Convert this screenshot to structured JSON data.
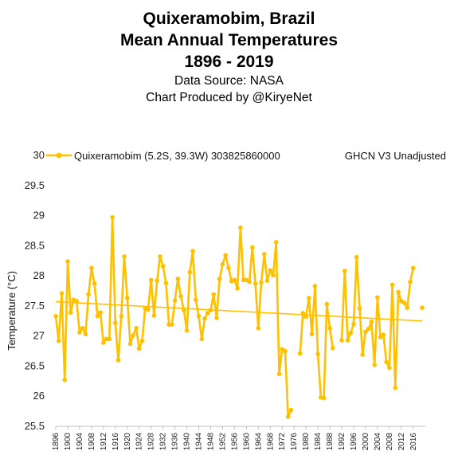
{
  "title_lines": [
    "Quixeramobim, Brazil",
    "Mean Annual Temperatures",
    "1896 - 2019"
  ],
  "subtitle_lines": [
    "Data Source: NASA",
    "Chart Produced by @KiryeNet"
  ],
  "colors": {
    "series": "#FFC000",
    "trend": "#FFC000",
    "text": "#000000"
  },
  "chart_data": {
    "type": "line",
    "title": "Quixeramobim, Brazil Mean Annual Temperatures 1896 - 2019",
    "ylabel": "Temperature (°C)",
    "xlabel": "",
    "ylim": [
      25.5,
      30
    ],
    "xlim": [
      1896,
      2019
    ],
    "yticks": [
      25.5,
      26,
      26.5,
      27,
      27.5,
      28,
      28.5,
      29,
      29.5,
      30
    ],
    "xticks": [
      1896,
      1900,
      1904,
      1908,
      1912,
      1916,
      1920,
      1924,
      1928,
      1932,
      1936,
      1940,
      1944,
      1948,
      1952,
      1956,
      1960,
      1964,
      1968,
      1972,
      1976,
      1980,
      1984,
      1988,
      1992,
      1996,
      2000,
      2004,
      2008,
      2012,
      2016
    ],
    "grid": false,
    "legend_position": "top",
    "legend_label": "Quixeramobim (5.2S, 39.3W) 303825860000",
    "legend_note": "GHCN V3 Unadjusted",
    "trendline": {
      "start": [
        1896,
        27.57
      ],
      "end": [
        2019,
        27.25
      ]
    },
    "series": [
      {
        "name": "Quixeramobim (5.2S, 39.3W) 303825860000",
        "points": [
          [
            1896,
            27.33
          ],
          [
            1897,
            26.92
          ],
          [
            1898,
            27.71
          ],
          [
            1899,
            26.27
          ],
          [
            1900,
            28.24
          ],
          [
            1901,
            27.39
          ],
          [
            1902,
            27.6
          ],
          [
            1903,
            27.58
          ],
          [
            1904,
            27.06
          ],
          [
            1905,
            27.13
          ],
          [
            1906,
            27.03
          ],
          [
            1907,
            27.69
          ],
          [
            1908,
            28.13
          ],
          [
            1909,
            27.87
          ],
          [
            1910,
            27.33
          ],
          [
            1911,
            27.39
          ],
          [
            1912,
            26.89
          ],
          [
            1913,
            26.95
          ],
          [
            1914,
            26.95
          ],
          [
            1915,
            28.97
          ],
          [
            1916,
            27.22
          ],
          [
            1917,
            26.6
          ],
          [
            1918,
            27.33
          ],
          [
            1919,
            28.32
          ],
          [
            1920,
            27.63
          ],
          [
            1921,
            26.87
          ],
          [
            1922,
            27.01
          ],
          [
            1923,
            27.13
          ],
          [
            1924,
            26.79
          ],
          [
            1925,
            26.92
          ],
          [
            1926,
            27.46
          ],
          [
            1927,
            27.44
          ],
          [
            1928,
            27.93
          ],
          [
            1929,
            27.34
          ],
          [
            1930,
            27.92
          ],
          [
            1931,
            28.32
          ],
          [
            1932,
            28.16
          ],
          [
            1933,
            27.88
          ],
          [
            1934,
            27.19
          ],
          [
            1935,
            27.19
          ],
          [
            1936,
            27.59
          ],
          [
            1937,
            27.95
          ],
          [
            1938,
            27.66
          ],
          [
            1939,
            27.43
          ],
          [
            1940,
            27.09
          ],
          [
            1941,
            28.06
          ],
          [
            1942,
            28.41
          ],
          [
            1943,
            27.6
          ],
          [
            1944,
            27.33
          ],
          [
            1945,
            26.95
          ],
          [
            1946,
            27.29
          ],
          [
            1947,
            27.38
          ],
          [
            1948,
            27.43
          ],
          [
            1949,
            27.69
          ],
          [
            1950,
            27.3
          ],
          [
            1951,
            27.95
          ],
          [
            1952,
            28.19
          ],
          [
            1953,
            28.34
          ],
          [
            1954,
            28.13
          ],
          [
            1955,
            27.91
          ],
          [
            1956,
            27.93
          ],
          [
            1957,
            27.79
          ],
          [
            1958,
            28.8
          ],
          [
            1959,
            27.93
          ],
          [
            1960,
            27.93
          ],
          [
            1961,
            27.9
          ],
          [
            1962,
            28.47
          ],
          [
            1963,
            27.87
          ],
          [
            1964,
            27.13
          ],
          [
            1965,
            27.89
          ],
          [
            1966,
            28.36
          ],
          [
            1967,
            27.92
          ],
          [
            1968,
            28.09
          ],
          [
            1969,
            28.01
          ],
          [
            1970,
            28.56
          ],
          [
            1971,
            26.37
          ],
          [
            1972,
            26.78
          ],
          [
            1973,
            26.75
          ],
          [
            1974,
            25.66
          ],
          [
            1975,
            25.77
          ],
          [
            1978,
            26.71
          ],
          [
            1979,
            27.38
          ],
          [
            1980,
            27.32
          ],
          [
            1981,
            27.63
          ],
          [
            1982,
            27.03
          ],
          [
            1983,
            27.83
          ],
          [
            1984,
            26.7
          ],
          [
            1985,
            25.98
          ],
          [
            1986,
            25.97
          ],
          [
            1987,
            27.53
          ],
          [
            1988,
            27.13
          ],
          [
            1989,
            26.8
          ],
          [
            1992,
            26.93
          ],
          [
            1993,
            28.08
          ],
          [
            1994,
            26.93
          ],
          [
            1995,
            27.05
          ],
          [
            1996,
            27.2
          ],
          [
            1997,
            28.31
          ],
          [
            1998,
            27.46
          ],
          [
            1999,
            26.69
          ],
          [
            2000,
            27.07
          ],
          [
            2001,
            27.12
          ],
          [
            2002,
            27.24
          ],
          [
            2003,
            26.52
          ],
          [
            2004,
            27.64
          ],
          [
            2005,
            26.98
          ],
          [
            2006,
            27.02
          ],
          [
            2007,
            26.57
          ],
          [
            2008,
            26.47
          ],
          [
            2009,
            27.85
          ],
          [
            2010,
            26.14
          ],
          [
            2011,
            27.73
          ],
          [
            2012,
            27.58
          ],
          [
            2013,
            27.55
          ],
          [
            2014,
            27.47
          ],
          [
            2015,
            27.9
          ],
          [
            2016,
            28.13
          ],
          [
            2019,
            27.47
          ]
        ]
      }
    ]
  }
}
